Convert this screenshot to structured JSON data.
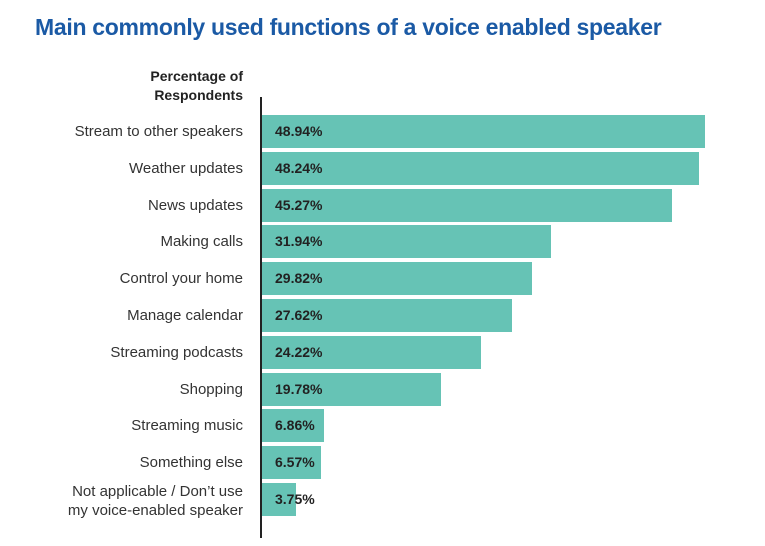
{
  "chart_data": {
    "type": "bar",
    "orientation": "horizontal",
    "title": "Main commonly used functions of a voice enabled speaker",
    "y_label": "Percentage of\nRespondents",
    "categories": [
      "Stream to other speakers",
      "Weather updates",
      "News updates",
      "Making calls",
      "Control your home",
      "Manage calendar",
      "Streaming podcasts",
      "Shopping",
      "Streaming music",
      "Something else",
      "Not applicable / Don’t use\nmy voice-enabled speaker"
    ],
    "values": [
      48.94,
      48.24,
      45.27,
      31.94,
      29.82,
      27.62,
      24.22,
      19.78,
      6.86,
      6.57,
      3.75
    ],
    "value_labels": [
      "48.94%",
      "48.24%",
      "45.27%",
      "31.94%",
      "29.82%",
      "27.62%",
      "24.22%",
      "19.78%",
      "6.86%",
      "6.57%",
      "3.75%"
    ],
    "color": "#66c3b5",
    "title_color": "#1b5aa5"
  }
}
